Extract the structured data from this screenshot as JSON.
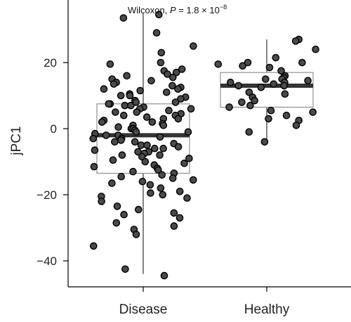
{
  "chart_data": {
    "type": "box",
    "title": "",
    "xlabel": "",
    "ylabel": "jPC1",
    "ylim": [
      -48,
      38
    ],
    "yticks": [
      -40,
      -20,
      0,
      20
    ],
    "categories": [
      "Disease",
      "Healthy"
    ],
    "annotation": {
      "prefix": "Wilcoxon, ",
      "p_symbol": "P",
      "p_value_text": " = 1.8 × 10",
      "p_exponent": "−8"
    },
    "boxes": [
      {
        "category": "Disease",
        "q1": -13.5,
        "median": -2,
        "q3": 7.5,
        "whisker_low": -44,
        "whisker_high": 35,
        "points": [
          34.5,
          33.5,
          29,
          25,
          23,
          20,
          19.5,
          18,
          17.5,
          17,
          16.5,
          16,
          15.5,
          15,
          14.5,
          14,
          13.5,
          13,
          12.5,
          12,
          12,
          11.5,
          11,
          10.5,
          10,
          10,
          9.5,
          9,
          8.5,
          8,
          8,
          7.5,
          7.5,
          7,
          7,
          6.5,
          6,
          6,
          5.5,
          5,
          5,
          4.5,
          4,
          4,
          3.5,
          3,
          3,
          2.5,
          2,
          2,
          1.5,
          1,
          1,
          0.5,
          0,
          0,
          -0.5,
          -1,
          -1,
          -1.5,
          -2,
          -2,
          -2.5,
          -3,
          -3,
          -3.5,
          -4,
          -4,
          -4.5,
          -5,
          -5,
          -5.5,
          -6,
          -6,
          -6.5,
          -7,
          -7,
          -7.5,
          -8,
          -8,
          -8.5,
          -9,
          -9.5,
          -10,
          -10.5,
          -11,
          -11.5,
          -12,
          -12.5,
          -13,
          -13.5,
          -14,
          -14.5,
          -15,
          -15.5,
          -16,
          -16.5,
          -17,
          -18,
          -19,
          -19.5,
          -20,
          -20.5,
          -21,
          -22,
          -23.5,
          -24.5,
          -25.5,
          -26,
          -27,
          -28.5,
          -29.5,
          -30.5,
          -32,
          -35.5,
          -42.5,
          -44.5
        ]
      },
      {
        "category": "Healthy",
        "q1": 6.5,
        "median": 13,
        "q3": 17,
        "whisker_low": -4,
        "whisker_high": 27,
        "points": [
          27,
          26.5,
          24,
          21.5,
          20,
          20,
          19.5,
          19,
          18.5,
          17.5,
          16,
          15.5,
          15,
          15,
          14.5,
          14,
          14,
          13.5,
          13,
          13,
          12.5,
          11,
          10.5,
          9.5,
          8.5,
          8,
          7,
          6.5,
          5.5,
          5,
          4,
          3,
          2.5,
          1,
          -1,
          -4
        ]
      }
    ]
  }
}
